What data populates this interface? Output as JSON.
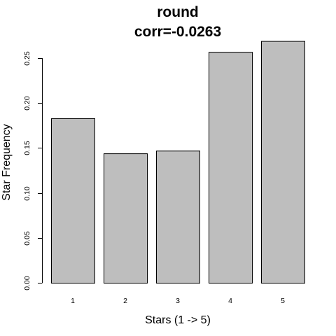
{
  "chart_data": {
    "type": "bar",
    "title": "round",
    "subtitle": "corr=-0.0263",
    "xlabel": "Stars (1 -> 5)",
    "ylabel": "Star Frequency",
    "categories": [
      "1",
      "2",
      "3",
      "4",
      "5"
    ],
    "values": [
      0.183,
      0.144,
      0.147,
      0.257,
      0.269
    ],
    "ylim": [
      0,
      0.25
    ],
    "yticks": [
      0.0,
      0.05,
      0.1,
      0.15,
      0.2,
      0.25
    ],
    "ytick_labels": [
      "0.00",
      "0.05",
      "0.10",
      "0.15",
      "0.20",
      "0.25"
    ],
    "grid": false,
    "bar_fill": "#bebebe",
    "bar_stroke": "#000000"
  }
}
